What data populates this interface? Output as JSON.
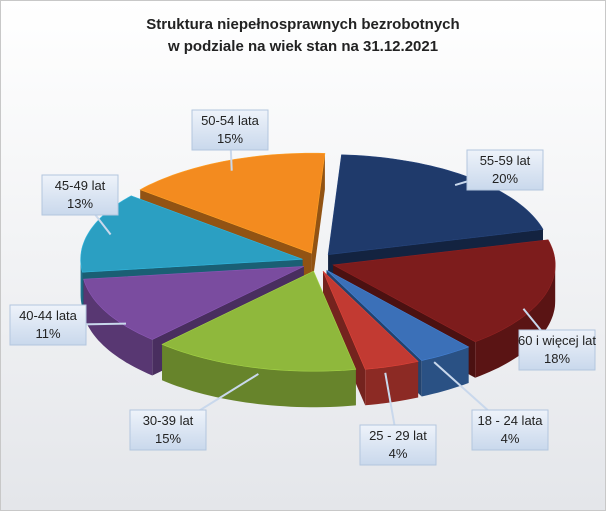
{
  "chart_data": {
    "type": "pie3d",
    "title": "Struktura niepełnosprawnych bezrobotnych\nw podziale na wiek stan na 31.12.2021",
    "categories": [
      "55-59 lat",
      "60 i więcej lat",
      "18 - 24 lata",
      "25 - 29 lat",
      "30-39 lat",
      "40-44 lata",
      "45-49 lat",
      "50-54 lata"
    ],
    "values": [
      20,
      18,
      4,
      4,
      15,
      11,
      13,
      15
    ],
    "value_labels": [
      "20%",
      "18%",
      "4%",
      "4%",
      "15%",
      "11%",
      "13%",
      "15%"
    ],
    "colors": [
      "#1f3a6b",
      "#7d1c1c",
      "#3b70b8",
      "#c23a32",
      "#8fb83c",
      "#7a4c9f",
      "#2b9fc2",
      "#f38b1f"
    ]
  }
}
